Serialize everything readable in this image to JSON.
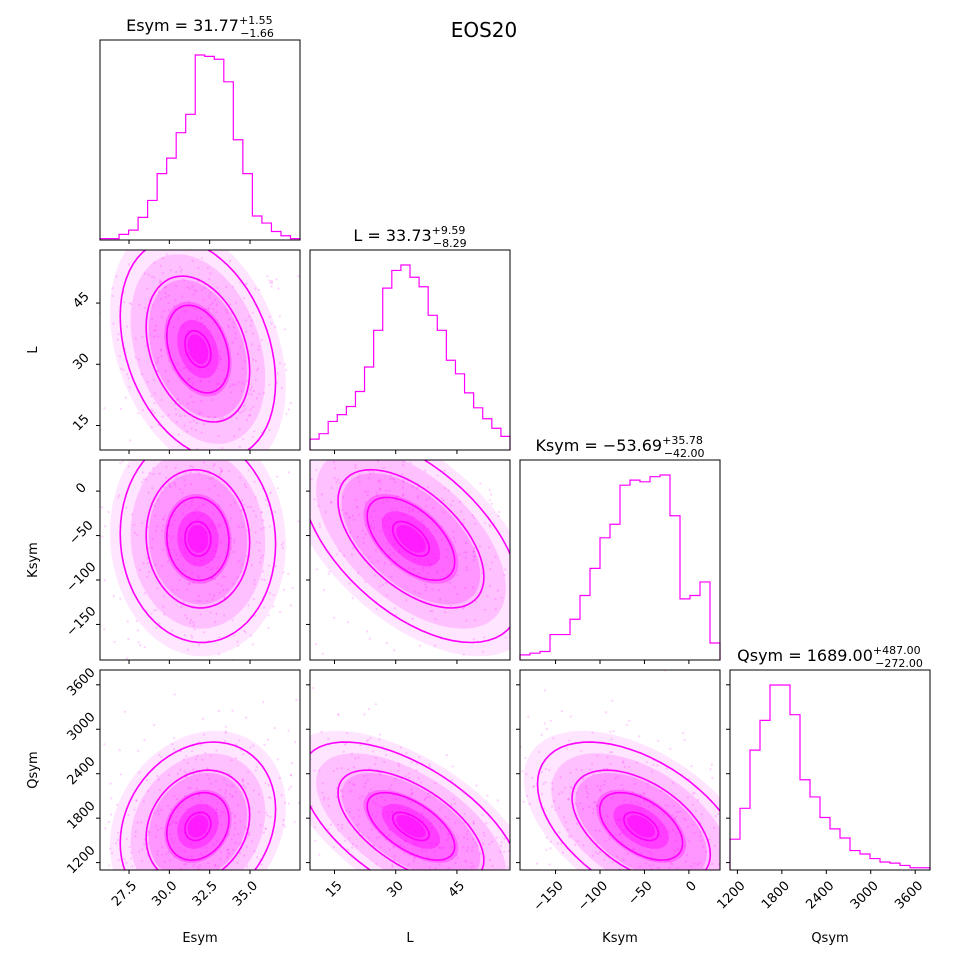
{
  "figure_title": "EOS20",
  "accent_color": "#ff00ff",
  "chart_data": {
    "type": "corner",
    "title": "EOS20",
    "parameters": [
      {
        "name": "Esym",
        "axis_label": "Esym",
        "median": "31.77",
        "upper": "+1.55",
        "lower": "−1.66",
        "title_prefix": "Esym = 31.77",
        "range": [
          25.7,
          38.1
        ],
        "ticks": [
          27.5,
          30.0,
          32.5,
          35.0
        ],
        "tick_labels": [
          "27.5",
          "30.0",
          "32.5",
          "35.0"
        ]
      },
      {
        "name": "L",
        "axis_label": "L",
        "median": "33.73",
        "upper": "+9.59",
        "lower": "−8.29",
        "title_prefix": "L = 33.73",
        "range": [
          9,
          58
        ],
        "ticks": [
          15,
          30,
          45
        ],
        "tick_labels": [
          "15",
          "30",
          "45"
        ]
      },
      {
        "name": "Ksym",
        "axis_label": "Ksym",
        "median": "−53.69",
        "upper": "+35.78",
        "lower": "−42.00",
        "title_prefix": "Ksym = −53.69",
        "range": [
          -190,
          35
        ],
        "ticks": [
          -150,
          -100,
          -50,
          0
        ],
        "tick_labels": [
          "−150",
          "−100",
          "−50",
          "0"
        ]
      },
      {
        "name": "Qsym",
        "axis_label": "Qsym",
        "median": "1689.00",
        "upper": "+487.00",
        "lower": "−272.00",
        "title_prefix": "Qsym = 1689.00",
        "range": [
          1100,
          3800
        ],
        "ticks": [
          1200,
          1800,
          2400,
          3000,
          3600
        ],
        "tick_labels": [
          "1200",
          "1800",
          "2400",
          "3000",
          "3600"
        ]
      }
    ],
    "histograms": [
      {
        "param": "Esym",
        "counts": [
          1,
          1,
          4,
          7,
          16,
          28,
          47,
          58,
          76,
          89,
          131,
          130,
          128,
          112,
          71,
          47,
          17,
          12,
          6,
          3,
          1
        ]
      },
      {
        "param": "L",
        "counts": [
          8,
          12,
          21,
          26,
          32,
          43,
          61,
          88,
          119,
          132,
          136,
          127,
          120,
          99,
          88,
          66,
          56,
          42,
          31,
          23,
          16,
          10
        ]
      },
      {
        "param": "Ksym",
        "counts": [
          3,
          4,
          5,
          15,
          15,
          24,
          38,
          54,
          72,
          80,
          103,
          106,
          105,
          108,
          109,
          85,
          36,
          38,
          46,
          10
        ]
      },
      {
        "param": "Qsym",
        "counts": [
          27,
          54,
          105,
          131,
          162,
          162,
          136,
          79,
          64,
          46,
          36,
          28,
          17,
          14,
          10,
          7,
          6,
          4,
          2,
          2
        ]
      }
    ],
    "correlations": [
      {
        "x": "Esym",
        "y": "L",
        "rho": -0.3
      },
      {
        "x": "Esym",
        "y": "Ksym",
        "rho": -0.05
      },
      {
        "x": "L",
        "y": "Ksym",
        "rho": -0.55
      },
      {
        "x": "Esym",
        "y": "Qsym",
        "rho": 0.2
      },
      {
        "x": "L",
        "y": "Qsym",
        "rho": -0.6
      },
      {
        "x": "Ksym",
        "y": "Qsym",
        "rho": -0.5
      }
    ]
  }
}
